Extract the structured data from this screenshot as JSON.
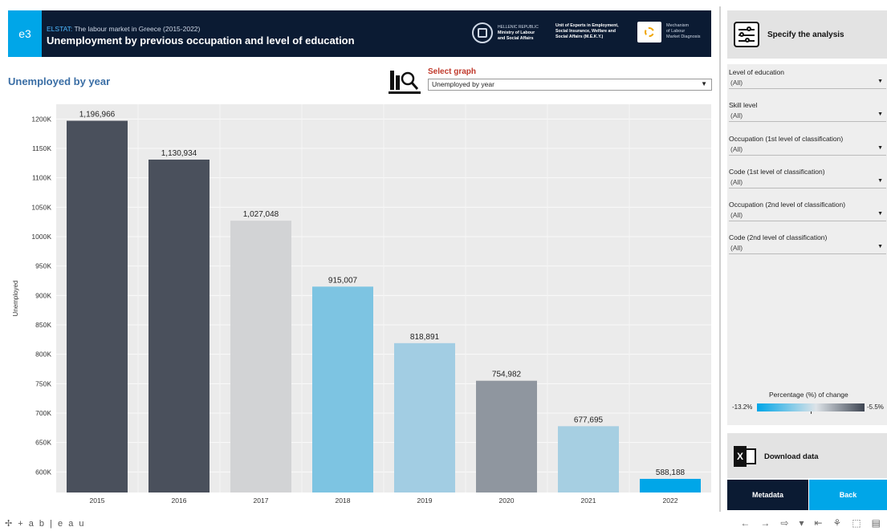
{
  "header": {
    "badge": "e3",
    "source": "ELSTAT:",
    "subtitle": " The labour market in Greece (2015-2022)",
    "title": "Unemployment by previous occupation and level of education",
    "ministry_lines": [
      "HELLENIC REPUBLIC",
      "Ministry of Labour",
      "and Social Affairs"
    ],
    "unit_lines": [
      "Unit of Experts in Employment,",
      "Social Insurance, Welfare and",
      "Social Affairs (M.E.K.Y.)"
    ],
    "mechanism_lines": [
      "Mechanism",
      "of Labour",
      "Market Diagnosis"
    ]
  },
  "selector": {
    "label": "Select graph",
    "value": "Unemployed by year"
  },
  "panel": {
    "specify": "Specify the analysis",
    "filters": [
      {
        "label": "Level of education",
        "value": "(All)"
      },
      {
        "label": "Skill level",
        "value": "(All)"
      },
      {
        "label": "Occupation (1st level of classification)",
        "value": "(All)"
      },
      {
        "label": "Code (1st level of classification)",
        "value": "(All)"
      },
      {
        "label": "Occupation (2nd level of classification)",
        "value": "(All)"
      },
      {
        "label": "Code (2nd level of classification)",
        "value": "(All)"
      }
    ],
    "legend": {
      "title": "Percentage (%) of change",
      "min": "-13.2%",
      "max": "-5.5%"
    },
    "download": "Download data",
    "metadata": "Metadata",
    "back": "Back"
  },
  "footer": {
    "logo": "+ a b | e a u",
    "icons": [
      "←",
      "→",
      "⇨",
      "▾",
      "⇤",
      "⚘",
      "⬚",
      "▤"
    ]
  },
  "colors": {
    "header_bg": "#0b1b33",
    "accent": "#00a6e8",
    "plot_bg": "#ebebeb"
  },
  "chart_data": {
    "type": "bar",
    "title": "Unemployed by year",
    "ylabel": "Unemployed",
    "xlabel": "",
    "categories": [
      "2015",
      "2016",
      "2017",
      "2018",
      "2019",
      "2020",
      "2021",
      "2022"
    ],
    "values": [
      1196966,
      1130934,
      1027048,
      915007,
      818891,
      754982,
      677695,
      588188
    ],
    "value_labels": [
      "1,196,966",
      "1,130,934",
      "1,027,048",
      "915,007",
      "818,891",
      "754,982",
      "677,695",
      "588,188"
    ],
    "bar_colors": [
      "#4a505c",
      "#4a505c",
      "#d2d3d5",
      "#7dc4e2",
      "#a2cde3",
      "#8f969f",
      "#a6cfe2",
      "#00a6e8"
    ],
    "y_ticks": [
      600000,
      650000,
      700000,
      750000,
      800000,
      850000,
      900000,
      950000,
      1000000,
      1050000,
      1100000,
      1150000,
      1200000
    ],
    "y_tick_labels": [
      "600K",
      "650K",
      "700K",
      "750K",
      "800K",
      "850K",
      "900K",
      "950K",
      "1000K",
      "1050K",
      "1100K",
      "1150K",
      "1200K"
    ],
    "ylim": [
      565000,
      1225000
    ],
    "grid": true
  }
}
